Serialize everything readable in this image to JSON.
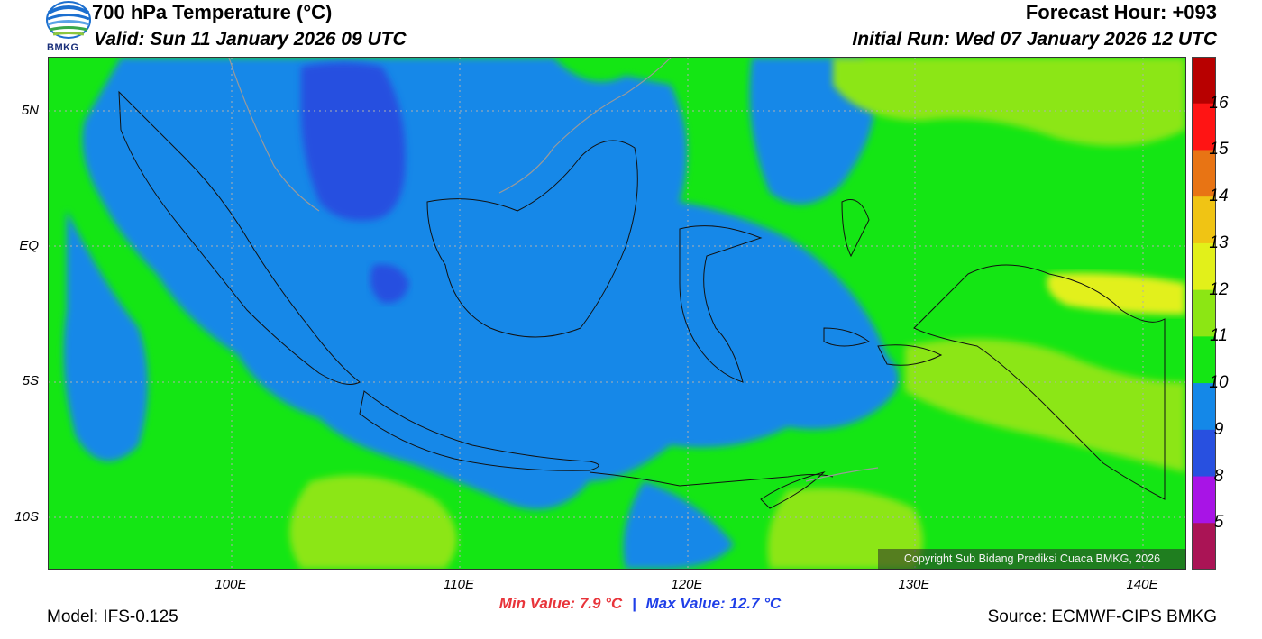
{
  "header": {
    "title": "700 hPa Temperature (°C)",
    "valid": "Valid: Sun 11 January 2026 09 UTC",
    "forecast_hour": "Forecast Hour: +093",
    "initial_run": "Initial Run: Wed 07 January 2026 12 UTC",
    "logo_text": "BMKG"
  },
  "map": {
    "lat_labels": [
      "5N",
      "EQ",
      "5S",
      "10S"
    ],
    "lon_labels": [
      "100E",
      "110E",
      "120E",
      "130E",
      "140E"
    ],
    "copyright": "Copyright Sub Bidang Prediksi Cuaca BMKG, 2026"
  },
  "colorbar": {
    "labels": [
      "16",
      "15",
      "14",
      "13",
      "12",
      "11",
      "10",
      "9",
      "8",
      "5"
    ],
    "colors": [
      "#b80000",
      "#ff1414",
      "#e87414",
      "#f0c414",
      "#e2f01a",
      "#8ce614",
      "#14e614",
      "#1488e8",
      "#2850e0",
      "#a814e6",
      "#aa1455"
    ]
  },
  "footer": {
    "model": "Model: IFS-0.125",
    "min_value": "Min Value: 7.9 °C",
    "separator": "|",
    "max_value": "Max Value: 12.7 °C",
    "source": "Source: ECMWF-CIPS BMKG"
  }
}
